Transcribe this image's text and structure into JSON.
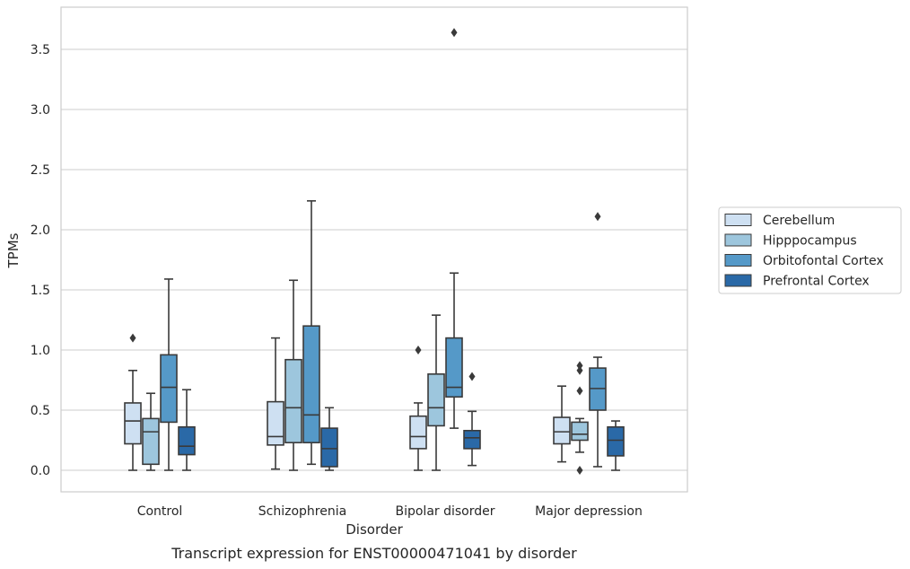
{
  "caption": "Transcript expression for ENST00000471041 by disorder",
  "chart_data": {
    "type": "box",
    "title": "",
    "xlabel": "Disorder",
    "ylabel": "TPMs",
    "ylim": [
      -0.18,
      3.85
    ],
    "yticks": [
      0.0,
      0.5,
      1.0,
      1.5,
      2.0,
      2.5,
      3.0,
      3.5
    ],
    "ytick_labels": [
      "0.0",
      "0.5",
      "1.0",
      "1.5",
      "2.0",
      "2.5",
      "3.0",
      "3.5"
    ],
    "grid": "horizontal",
    "legend_position": "right",
    "categories": [
      "Control",
      "Schizophrenia",
      "Bipolar disorder",
      "Major depression"
    ],
    "series": [
      {
        "name": "Cerebellum",
        "color": "#cee0f2",
        "boxes": [
          {
            "whislo": 0.0,
            "q1": 0.22,
            "med": 0.41,
            "q3": 0.56,
            "whishi": 0.83,
            "fliers": [
              1.1
            ]
          },
          {
            "whislo": 0.01,
            "q1": 0.21,
            "med": 0.28,
            "q3": 0.57,
            "whishi": 1.1,
            "fliers": []
          },
          {
            "whislo": 0.0,
            "q1": 0.18,
            "med": 0.28,
            "q3": 0.45,
            "whishi": 0.56,
            "fliers": [
              1.0
            ]
          },
          {
            "whislo": 0.07,
            "q1": 0.22,
            "med": 0.32,
            "q3": 0.44,
            "whishi": 0.7,
            "fliers": []
          }
        ]
      },
      {
        "name": "Hipppocampus",
        "color": "#9dc6dd",
        "boxes": [
          {
            "whislo": 0.0,
            "q1": 0.05,
            "med": 0.32,
            "q3": 0.43,
            "whishi": 0.64,
            "fliers": []
          },
          {
            "whislo": 0.0,
            "q1": 0.23,
            "med": 0.52,
            "q3": 0.92,
            "whishi": 1.58,
            "fliers": []
          },
          {
            "whislo": 0.0,
            "q1": 0.37,
            "med": 0.52,
            "q3": 0.8,
            "whishi": 1.29,
            "fliers": []
          },
          {
            "whislo": 0.15,
            "q1": 0.25,
            "med": 0.3,
            "q3": 0.4,
            "whishi": 0.43,
            "fliers": [
              0.0,
              0.66,
              0.83,
              0.87
            ]
          }
        ]
      },
      {
        "name": "Orbitofontal Cortex",
        "color": "#5599c8",
        "boxes": [
          {
            "whislo": 0.0,
            "q1": 0.4,
            "med": 0.69,
            "q3": 0.96,
            "whishi": 1.59,
            "fliers": []
          },
          {
            "whislo": 0.05,
            "q1": 0.23,
            "med": 0.46,
            "q3": 1.2,
            "whishi": 2.24,
            "fliers": []
          },
          {
            "whislo": 0.35,
            "q1": 0.61,
            "med": 0.69,
            "q3": 1.1,
            "whishi": 1.64,
            "fliers": [
              3.64
            ]
          },
          {
            "whislo": 0.03,
            "q1": 0.5,
            "med": 0.68,
            "q3": 0.85,
            "whishi": 0.94,
            "fliers": [
              2.11
            ]
          }
        ]
      },
      {
        "name": "Prefrontal Cortex",
        "color": "#2a69a7",
        "boxes": [
          {
            "whislo": 0.0,
            "q1": 0.13,
            "med": 0.2,
            "q3": 0.36,
            "whishi": 0.67,
            "fliers": []
          },
          {
            "whislo": 0.0,
            "q1": 0.03,
            "med": 0.18,
            "q3": 0.35,
            "whishi": 0.52,
            "fliers": []
          },
          {
            "whislo": 0.04,
            "q1": 0.18,
            "med": 0.27,
            "q3": 0.33,
            "whishi": 0.49,
            "fliers": [
              0.78
            ]
          },
          {
            "whislo": 0.0,
            "q1": 0.12,
            "med": 0.25,
            "q3": 0.36,
            "whishi": 0.41,
            "fliers": []
          }
        ]
      }
    ]
  },
  "colors": {
    "grid": "#cccccc",
    "frame": "#cccccc",
    "edge": "#3a3a3a",
    "text": "#262626"
  }
}
